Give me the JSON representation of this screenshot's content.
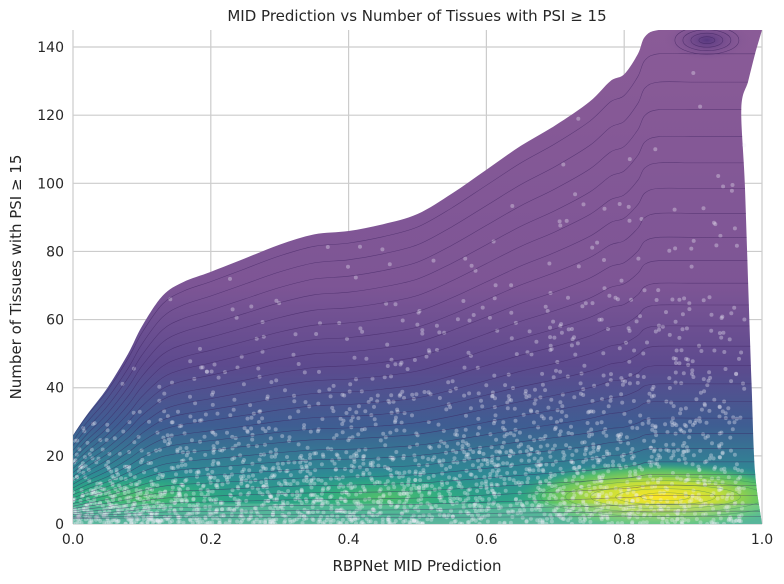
{
  "chart_data": {
    "type": "scatter",
    "overlay": "kde-density-contours",
    "title": "MID Prediction vs Number of Tissues with PSI ≥ 15",
    "xlabel": "RBPNet MID Prediction",
    "ylabel": "Number of Tissues with PSI ≥ 15",
    "xlim": [
      0,
      1.0
    ],
    "ylim": [
      0,
      145
    ],
    "xticks": [
      0.0,
      0.2,
      0.4,
      0.6,
      0.8,
      1.0
    ],
    "xtick_labels": [
      "0.0",
      "0.2",
      "0.4",
      "0.6",
      "0.8",
      "1.0"
    ],
    "yticks": [
      0,
      20,
      40,
      60,
      80,
      100,
      120,
      140
    ],
    "ytick_labels": [
      "0",
      "20",
      "40",
      "60",
      "80",
      "100",
      "120",
      "140"
    ],
    "grid": true,
    "colormap": "viridis",
    "colors": {
      "low_density": "#8a5b97",
      "mid_low_density": "#5a4a8f",
      "mid_density": "#3b7fa0",
      "mid_high_density": "#27ad81",
      "high_density": "#fde725",
      "points": "#e8e8f0",
      "grid": "#cccccc",
      "background": "#ffffff"
    },
    "density_envelope_top": [
      [
        0.0,
        26
      ],
      [
        0.02,
        32
      ],
      [
        0.05,
        40
      ],
      [
        0.08,
        50
      ],
      [
        0.1,
        58
      ],
      [
        0.13,
        67
      ],
      [
        0.16,
        71
      ],
      [
        0.2,
        74
      ],
      [
        0.25,
        78
      ],
      [
        0.3,
        82
      ],
      [
        0.35,
        85
      ],
      [
        0.4,
        86
      ],
      [
        0.45,
        88
      ],
      [
        0.5,
        91
      ],
      [
        0.55,
        97
      ],
      [
        0.6,
        104
      ],
      [
        0.65,
        111
      ],
      [
        0.7,
        117
      ],
      [
        0.75,
        124
      ],
      [
        0.78,
        130
      ],
      [
        0.8,
        132
      ],
      [
        0.82,
        138
      ],
      [
        0.83,
        143
      ],
      [
        0.85,
        145
      ],
      [
        0.9,
        145
      ],
      [
        0.95,
        145
      ],
      [
        1.0,
        145
      ]
    ],
    "density_envelope_right": [
      [
        1.0,
        145
      ],
      [
        0.99,
        138
      ],
      [
        0.98,
        130
      ],
      [
        0.97,
        122
      ],
      [
        0.975,
        100
      ],
      [
        0.98,
        70
      ],
      [
        0.985,
        40
      ],
      [
        0.99,
        15
      ],
      [
        1.0,
        0
      ]
    ],
    "density_hotspots": [
      {
        "x": 0.85,
        "y": 8,
        "level": "high"
      },
      {
        "x": 0.1,
        "y": 8,
        "level": "mid-high"
      },
      {
        "x": 0.45,
        "y": 8,
        "level": "mid-high"
      },
      {
        "x": 0.92,
        "y": 142,
        "level": "mid-low"
      }
    ]
  }
}
